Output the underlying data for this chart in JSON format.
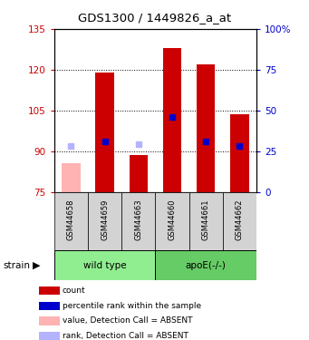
{
  "title": "GDS1300 / 1449826_a_at",
  "samples": [
    "GSM44658",
    "GSM44659",
    "GSM44663",
    "GSM44660",
    "GSM44661",
    "GSM44662"
  ],
  "bar_values": [
    null,
    119.0,
    88.5,
    128.0,
    122.0,
    103.5
  ],
  "bar_absent_values": [
    85.5,
    null,
    null,
    null,
    null,
    null
  ],
  "rank_values": [
    null,
    93.5,
    null,
    102.5,
    93.5,
    92.0
  ],
  "rank_absent_values": [
    92.0,
    null,
    92.5,
    null,
    null,
    null
  ],
  "ylim_left": [
    75,
    135
  ],
  "ylim_right": [
    0,
    100
  ],
  "yticks_left": [
    75,
    90,
    105,
    120,
    135
  ],
  "yticks_right": [
    0,
    25,
    50,
    75,
    100
  ],
  "ytick_labels_right": [
    "0",
    "25",
    "50",
    "75",
    "100%"
  ],
  "bar_color": "#cc0000",
  "bar_absent_color": "#ffb3b3",
  "rank_color": "#0000cc",
  "rank_absent_color": "#b3b3ff",
  "bar_width": 0.55,
  "rank_marker_size": 5,
  "left_label_color": "#cc0000",
  "right_label_color": "#0000cc",
  "legend_items": [
    {
      "color": "#cc0000",
      "label": "count"
    },
    {
      "color": "#0000cc",
      "label": "percentile rank within the sample"
    },
    {
      "color": "#ffb3b3",
      "label": "value, Detection Call = ABSENT"
    },
    {
      "color": "#b3b3ff",
      "label": "rank, Detection Call = ABSENT"
    }
  ],
  "fig_width": 3.41,
  "fig_height": 3.75
}
